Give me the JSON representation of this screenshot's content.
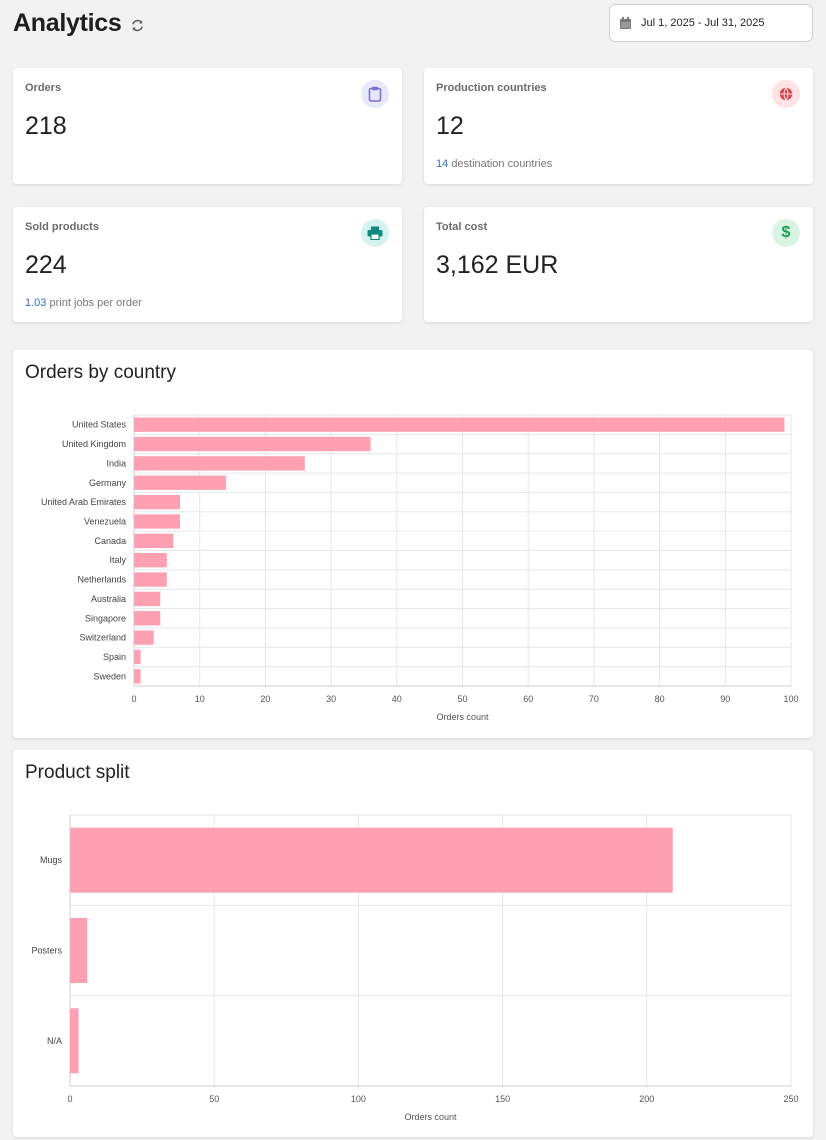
{
  "header": {
    "title": "Analytics",
    "refresh_icon": "refresh-icon",
    "date_range": "Jul 1, 2025 - Jul 31, 2025",
    "calendar_icon": "calendar-icon"
  },
  "stats": {
    "orders": {
      "label": "Orders",
      "value": "218",
      "icon": "clipboard-icon",
      "icon_color": "#7b6fd6",
      "icon_bg": "#e7e9fb"
    },
    "production": {
      "label": "Production countries",
      "value": "12",
      "sub_value": "14",
      "sub_text": "destination countries",
      "icon": "globe-icon",
      "icon_color": "#e0424b",
      "icon_bg": "#fde3e4"
    },
    "sold": {
      "label": "Sold products",
      "value": "224",
      "sub_value": "1.03",
      "sub_text": "print jobs per order",
      "icon": "printer-icon",
      "icon_color": "#0f8a7e",
      "icon_bg": "#d7f3ef"
    },
    "cost": {
      "label": "Total cost",
      "value": "3,162 EUR",
      "icon": "dollar-icon",
      "icon_color": "#1e9e55",
      "icon_bg": "#d8f4e2"
    }
  },
  "charts": {
    "country_title": "Orders by country",
    "product_title": "Product split",
    "bar_color": "#ffa0b2"
  },
  "chart_data": [
    {
      "type": "bar",
      "orientation": "horizontal",
      "title": "Orders by country",
      "categories": [
        "United States",
        "United Kingdom",
        "India",
        "Germany",
        "United Arab Emirates",
        "Venezuela",
        "Canada",
        "Italy",
        "Netherlands",
        "Australia",
        "Singapore",
        "Switzerland",
        "Spain",
        "Sweden"
      ],
      "values": [
        99,
        36,
        26,
        14,
        7,
        7,
        6,
        5,
        5,
        4,
        4,
        3,
        1,
        1
      ],
      "xlabel": "Orders count",
      "xlim": [
        0,
        100
      ],
      "xticks": [
        0,
        10,
        20,
        30,
        40,
        50,
        60,
        70,
        80,
        90,
        100
      ],
      "grid": true
    },
    {
      "type": "bar",
      "orientation": "horizontal",
      "title": "Product split",
      "categories": [
        "Mugs",
        "Posters",
        "N/A"
      ],
      "values": [
        209,
        6,
        3
      ],
      "xlabel": "Orders count",
      "xlim": [
        0,
        250
      ],
      "xticks": [
        0,
        50,
        100,
        150,
        200,
        250
      ],
      "grid": true
    }
  ]
}
